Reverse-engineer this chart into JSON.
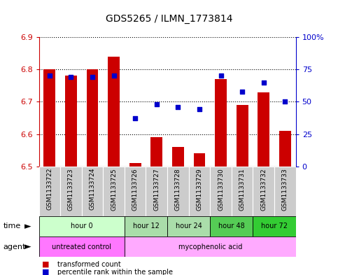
{
  "title": "GDS5265 / ILMN_1773814",
  "samples": [
    "GSM1133722",
    "GSM1133723",
    "GSM1133724",
    "GSM1133725",
    "GSM1133726",
    "GSM1133727",
    "GSM1133728",
    "GSM1133729",
    "GSM1133730",
    "GSM1133731",
    "GSM1133732",
    "GSM1133733"
  ],
  "bar_values": [
    6.8,
    6.78,
    6.8,
    6.84,
    6.51,
    6.59,
    6.56,
    6.54,
    6.77,
    6.69,
    6.73,
    6.61
  ],
  "blue_values": [
    70,
    69,
    69,
    70,
    37,
    48,
    46,
    44,
    70,
    58,
    65,
    50
  ],
  "ylim_left": [
    6.5,
    6.9
  ],
  "ylim_right": [
    0,
    100
  ],
  "yticks_left": [
    6.5,
    6.6,
    6.7,
    6.8,
    6.9
  ],
  "yticks_right": [
    0,
    25,
    50,
    75,
    100
  ],
  "ytick_labels_right": [
    "0",
    "25",
    "50",
    "75",
    "100%"
  ],
  "bar_color": "#cc0000",
  "blue_color": "#0000cc",
  "bar_bottom": 6.5,
  "time_groups": [
    {
      "label": "hour 0",
      "start": 0,
      "end": 4,
      "color": "#ccffcc"
    },
    {
      "label": "hour 12",
      "start": 4,
      "end": 6,
      "color": "#aaddaa"
    },
    {
      "label": "hour 24",
      "start": 6,
      "end": 8,
      "color": "#aaddaa"
    },
    {
      "label": "hour 48",
      "start": 8,
      "end": 10,
      "color": "#55cc55"
    },
    {
      "label": "hour 72",
      "start": 10,
      "end": 12,
      "color": "#33cc33"
    }
  ],
  "agent_groups": [
    {
      "label": "untreated control",
      "start": 0,
      "end": 4,
      "color": "#ff77ff"
    },
    {
      "label": "mycophenolic acid",
      "start": 4,
      "end": 12,
      "color": "#ffaaff"
    }
  ],
  "legend_items": [
    {
      "label": "transformed count",
      "color": "#cc0000"
    },
    {
      "label": "percentile rank within the sample",
      "color": "#0000cc"
    }
  ],
  "grid_color": "black",
  "axis_color_left": "#cc0000",
  "axis_color_right": "#0000cc",
  "bar_width": 0.55,
  "sample_bg": "#cccccc",
  "fig_width": 4.83,
  "fig_height": 3.93,
  "fig_dpi": 100
}
